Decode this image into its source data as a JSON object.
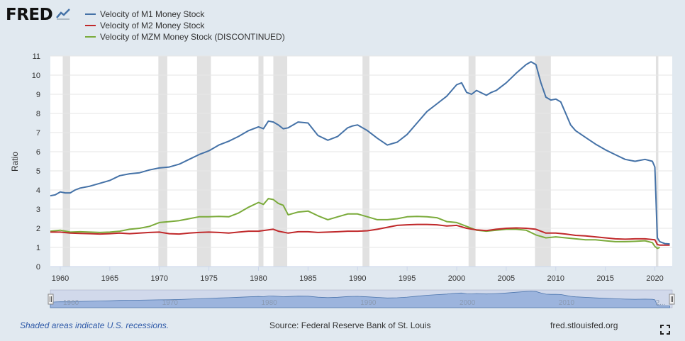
{
  "logo": {
    "text": "FRED",
    "icon": "trend-line-icon"
  },
  "footer": {
    "recession_note": "Shaded areas indicate U.S. recessions.",
    "source": "Source: Federal Reserve Bank of St. Louis",
    "url": "fred.stlouisfed.org",
    "expand_icon": "fullscreen-icon"
  },
  "navigator": {
    "labels": [
      "1960",
      "1970",
      "1980",
      "1990",
      "2000",
      "2010",
      "2..."
    ]
  },
  "colors": {
    "m1": "#4572a7",
    "m2": "#c0292b",
    "mzm": "#7bab3b",
    "recession": "#e1e1e1",
    "navigator": "#b3c6e6"
  },
  "chart_data": {
    "type": "line",
    "title": "",
    "xlabel": "",
    "ylabel": "Ratio",
    "xlim": [
      1959,
      2021.75
    ],
    "ylim": [
      0,
      11
    ],
    "yticks": [
      0,
      1,
      2,
      3,
      4,
      5,
      6,
      7,
      8,
      9,
      10,
      11
    ],
    "xticks": [
      1960,
      1965,
      1970,
      1975,
      1980,
      1985,
      1990,
      1995,
      2000,
      2005,
      2010,
      2015,
      2020
    ],
    "grid": "horizontal",
    "legend_position": "top-left",
    "recessions": [
      [
        1960.25,
        1961.0
      ],
      [
        1969.9,
        1970.8
      ],
      [
        1973.8,
        1975.2
      ],
      [
        1980.0,
        1980.5
      ],
      [
        1981.5,
        1982.9
      ],
      [
        1990.5,
        1991.2
      ],
      [
        2001.2,
        2001.9
      ],
      [
        2007.9,
        2009.5
      ],
      [
        2020.1,
        2020.35
      ]
    ],
    "series": [
      {
        "name": "Velocity of M1 Money Stock",
        "x": [
          1959.0,
          1959.5,
          1960.0,
          1960.5,
          1961.0,
          1961.5,
          1962.0,
          1963.0,
          1964.0,
          1965.0,
          1966.0,
          1967.0,
          1968.0,
          1969.0,
          1970.0,
          1971.0,
          1972.0,
          1973.0,
          1974.0,
          1975.0,
          1976.0,
          1977.0,
          1978.0,
          1979.0,
          1980.0,
          1980.5,
          1981.0,
          1981.5,
          1982.0,
          1982.5,
          1983.0,
          1984.0,
          1985.0,
          1986.0,
          1987.0,
          1988.0,
          1989.0,
          1989.5,
          1990.0,
          1991.0,
          1992.0,
          1993.0,
          1994.0,
          1995.0,
          1996.0,
          1997.0,
          1998.0,
          1999.0,
          2000.0,
          2000.5,
          2001.0,
          2001.5,
          2002.0,
          2003.0,
          2003.5,
          2004.0,
          2005.0,
          2006.0,
          2007.0,
          2007.5,
          2008.0,
          2008.5,
          2009.0,
          2009.5,
          2010.0,
          2010.5,
          2011.0,
          2011.5,
          2012.0,
          2013.0,
          2014.0,
          2015.0,
          2016.0,
          2017.0,
          2018.0,
          2019.0,
          2019.75,
          2020.0,
          2020.25,
          2020.5,
          2021.0,
          2021.5
        ],
        "values": [
          3.7,
          3.75,
          3.9,
          3.85,
          3.85,
          4.0,
          4.1,
          4.2,
          4.35,
          4.5,
          4.75,
          4.85,
          4.9,
          5.05,
          5.15,
          5.2,
          5.35,
          5.6,
          5.85,
          6.05,
          6.35,
          6.55,
          6.8,
          7.1,
          7.3,
          7.2,
          7.6,
          7.55,
          7.4,
          7.2,
          7.25,
          7.55,
          7.5,
          6.85,
          6.6,
          6.8,
          7.25,
          7.35,
          7.4,
          7.1,
          6.7,
          6.35,
          6.5,
          6.9,
          7.5,
          8.1,
          8.5,
          8.9,
          9.5,
          9.6,
          9.1,
          9.0,
          9.2,
          8.95,
          9.1,
          9.2,
          9.6,
          10.1,
          10.55,
          10.7,
          10.55,
          9.6,
          8.85,
          8.7,
          8.75,
          8.6,
          8.0,
          7.4,
          7.1,
          6.75,
          6.4,
          6.1,
          5.85,
          5.6,
          5.5,
          5.6,
          5.5,
          5.2,
          1.5,
          1.3,
          1.2,
          1.18
        ]
      },
      {
        "name": "Velocity of M2 Money Stock",
        "x": [
          1959.0,
          1960.0,
          1961.0,
          1962.0,
          1963.0,
          1964.0,
          1965.0,
          1966.0,
          1967.0,
          1968.0,
          1969.0,
          1970.0,
          1971.0,
          1972.0,
          1973.0,
          1974.0,
          1975.0,
          1976.0,
          1977.0,
          1978.0,
          1979.0,
          1980.0,
          1981.0,
          1981.5,
          1982.0,
          1983.0,
          1984.0,
          1985.0,
          1986.0,
          1987.0,
          1988.0,
          1989.0,
          1990.0,
          1991.0,
          1992.0,
          1993.0,
          1994.0,
          1995.0,
          1996.0,
          1997.0,
          1998.0,
          1999.0,
          2000.0,
          2001.0,
          2002.0,
          2003.0,
          2004.0,
          2005.0,
          2006.0,
          2007.0,
          2008.0,
          2009.0,
          2010.0,
          2011.0,
          2012.0,
          2013.0,
          2014.0,
          2015.0,
          2016.0,
          2017.0,
          2018.0,
          2019.0,
          2020.0,
          2020.25,
          2020.5,
          2021.0,
          2021.5
        ],
        "values": [
          1.8,
          1.8,
          1.75,
          1.73,
          1.72,
          1.7,
          1.72,
          1.75,
          1.72,
          1.75,
          1.78,
          1.8,
          1.72,
          1.7,
          1.75,
          1.78,
          1.8,
          1.78,
          1.75,
          1.8,
          1.85,
          1.85,
          1.92,
          1.95,
          1.85,
          1.75,
          1.82,
          1.82,
          1.78,
          1.8,
          1.82,
          1.85,
          1.85,
          1.87,
          1.95,
          2.05,
          2.15,
          2.18,
          2.2,
          2.2,
          2.18,
          2.12,
          2.15,
          2.0,
          1.92,
          1.88,
          1.95,
          2.0,
          2.02,
          2.0,
          1.95,
          1.75,
          1.75,
          1.7,
          1.63,
          1.6,
          1.55,
          1.5,
          1.45,
          1.43,
          1.45,
          1.45,
          1.4,
          1.15,
          1.12,
          1.12,
          1.12
        ]
      },
      {
        "name": "Velocity of MZM Money Stock (DISCONTINUED)",
        "x": [
          1959.0,
          1960.0,
          1961.0,
          1962.0,
          1963.0,
          1964.0,
          1965.0,
          1966.0,
          1967.0,
          1968.0,
          1969.0,
          1970.0,
          1971.0,
          1972.0,
          1973.0,
          1974.0,
          1975.0,
          1976.0,
          1977.0,
          1978.0,
          1979.0,
          1980.0,
          1980.5,
          1981.0,
          1981.5,
          1982.0,
          1982.5,
          1983.0,
          1984.0,
          1985.0,
          1986.0,
          1987.0,
          1988.0,
          1989.0,
          1990.0,
          1991.0,
          1992.0,
          1993.0,
          1994.0,
          1995.0,
          1996.0,
          1997.0,
          1998.0,
          1999.0,
          2000.0,
          2001.0,
          2002.0,
          2003.0,
          2004.0,
          2005.0,
          2006.0,
          2007.0,
          2008.0,
          2009.0,
          2010.0,
          2011.0,
          2012.0,
          2013.0,
          2014.0,
          2015.0,
          2016.0,
          2017.0,
          2018.0,
          2019.0,
          2019.75,
          2020.0,
          2020.25,
          2020.5
        ],
        "values": [
          1.85,
          1.9,
          1.8,
          1.82,
          1.8,
          1.78,
          1.8,
          1.85,
          1.95,
          2.0,
          2.1,
          2.3,
          2.35,
          2.4,
          2.5,
          2.6,
          2.6,
          2.62,
          2.6,
          2.8,
          3.1,
          3.35,
          3.25,
          3.55,
          3.5,
          3.3,
          3.2,
          2.7,
          2.85,
          2.9,
          2.65,
          2.45,
          2.6,
          2.75,
          2.75,
          2.6,
          2.45,
          2.45,
          2.5,
          2.6,
          2.62,
          2.6,
          2.55,
          2.35,
          2.3,
          2.1,
          1.9,
          1.85,
          1.9,
          1.95,
          1.95,
          1.9,
          1.65,
          1.5,
          1.55,
          1.5,
          1.45,
          1.4,
          1.4,
          1.35,
          1.3,
          1.3,
          1.32,
          1.35,
          1.25,
          1.05,
          0.95,
          1.0
        ]
      }
    ]
  }
}
